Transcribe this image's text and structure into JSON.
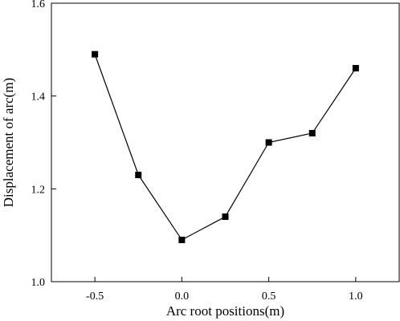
{
  "chart_data": {
    "type": "line",
    "title": "",
    "xlabel": "Arc root positions(m)",
    "ylabel": "Displacement  of arc(m)",
    "xlim": [
      -0.75,
      1.25
    ],
    "ylim": [
      1.0,
      1.6
    ],
    "x_ticks": [
      -0.5,
      0.0,
      0.5,
      1.0
    ],
    "x_tick_labels": [
      "-0.5",
      "0.0",
      "0.5",
      "1.0"
    ],
    "y_ticks": [
      1.0,
      1.2,
      1.4,
      1.6
    ],
    "y_tick_labels": [
      "1.0",
      "1.2",
      "1.4",
      "1.6"
    ],
    "grid": false,
    "legend": "none",
    "series": [
      {
        "marker": "square",
        "color": "#000000",
        "x": [
          -0.5,
          -0.25,
          0.0,
          0.25,
          0.5,
          0.75,
          1.0
        ],
        "y": [
          1.49,
          1.23,
          1.09,
          1.14,
          1.3,
          1.32,
          1.46
        ]
      }
    ]
  }
}
